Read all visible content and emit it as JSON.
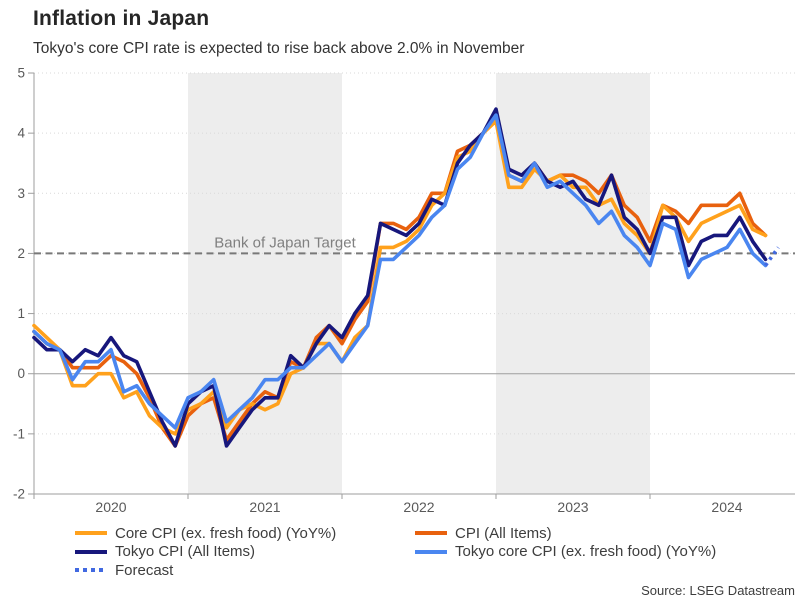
{
  "header": {
    "title": "Inflation in Japan",
    "subtitle": "Tokyo's core CPI rate is expected to rise back above 2.0% in November"
  },
  "source": "Source: LSEG Datastream",
  "chart_data": {
    "type": "line",
    "x_unit": "month",
    "months": [
      "2020-01",
      "2020-02",
      "2020-03",
      "2020-04",
      "2020-05",
      "2020-06",
      "2020-07",
      "2020-08",
      "2020-09",
      "2020-10",
      "2020-11",
      "2020-12",
      "2021-01",
      "2021-02",
      "2021-03",
      "2021-04",
      "2021-05",
      "2021-06",
      "2021-07",
      "2021-08",
      "2021-09",
      "2021-10",
      "2021-11",
      "2021-12",
      "2022-01",
      "2022-02",
      "2022-03",
      "2022-04",
      "2022-05",
      "2022-06",
      "2022-07",
      "2022-08",
      "2022-09",
      "2022-10",
      "2022-11",
      "2022-12",
      "2023-01",
      "2023-02",
      "2023-03",
      "2023-04",
      "2023-05",
      "2023-06",
      "2023-07",
      "2023-08",
      "2023-09",
      "2023-10",
      "2023-11",
      "2023-12",
      "2024-01",
      "2024-02",
      "2024-03",
      "2024-04",
      "2024-05",
      "2024-06",
      "2024-07",
      "2024-08",
      "2024-09",
      "2024-10"
    ],
    "ylim": [
      -2,
      5
    ],
    "yticks": [
      5,
      4,
      3,
      2,
      1,
      0,
      -1,
      -2
    ],
    "year_ticks": [
      2020,
      2021,
      2022,
      2023,
      2024
    ],
    "shaded_years": [
      2021,
      2023
    ],
    "grid": "dotted-horizontal",
    "legend_position": "bottom",
    "target_line": {
      "value": 2.0,
      "label": "Bank of Japan Target",
      "color": "#787878"
    },
    "series": [
      {
        "id": "cpi",
        "name": "CPI (All Items)",
        "color": "#E8610E",
        "values": [
          0.7,
          0.5,
          0.4,
          0.1,
          0.1,
          0.1,
          0.3,
          0.2,
          0.0,
          -0.4,
          -0.9,
          -1.2,
          -0.7,
          -0.5,
          -0.4,
          -1.1,
          -0.8,
          -0.5,
          -0.3,
          -0.4,
          0.2,
          0.1,
          0.6,
          0.8,
          0.5,
          0.9,
          1.2,
          2.5,
          2.5,
          2.4,
          2.6,
          3.0,
          3.0,
          3.7,
          3.8,
          4.0,
          4.3,
          3.3,
          3.2,
          3.5,
          3.2,
          3.3,
          3.3,
          3.2,
          3.0,
          3.3,
          2.8,
          2.6,
          2.2,
          2.8,
          2.7,
          2.5,
          2.8,
          2.8,
          2.8,
          3.0,
          2.5,
          2.3
        ]
      },
      {
        "id": "core",
        "name": "Core CPI (ex. fresh food) (YoY%)",
        "color": "#FFA11C",
        "values": [
          0.8,
          0.6,
          0.4,
          -0.2,
          -0.2,
          0.0,
          0.0,
          -0.4,
          -0.3,
          -0.7,
          -0.9,
          -1.0,
          -0.6,
          -0.5,
          -0.3,
          -0.9,
          -0.6,
          -0.5,
          -0.6,
          -0.5,
          0.0,
          0.1,
          0.5,
          0.5,
          0.2,
          0.6,
          0.8,
          2.1,
          2.1,
          2.2,
          2.4,
          2.8,
          3.0,
          3.6,
          3.7,
          4.0,
          4.2,
          3.1,
          3.1,
          3.4,
          3.2,
          3.3,
          3.1,
          3.1,
          2.8,
          2.9,
          2.5,
          2.3,
          2.0,
          2.8,
          2.6,
          2.2,
          2.5,
          2.6,
          2.7,
          2.8,
          2.4,
          2.3
        ]
      },
      {
        "id": "tokyo",
        "name": "Tokyo CPI (All Items)",
        "color": "#17177C",
        "values": [
          0.6,
          0.4,
          0.4,
          0.2,
          0.4,
          0.3,
          0.6,
          0.3,
          0.2,
          -0.3,
          -0.8,
          -1.2,
          -0.5,
          -0.3,
          -0.2,
          -1.2,
          -0.9,
          -0.6,
          -0.4,
          -0.4,
          0.3,
          0.1,
          0.5,
          0.8,
          0.6,
          1.0,
          1.3,
          2.5,
          2.4,
          2.3,
          2.5,
          2.9,
          2.8,
          3.5,
          3.8,
          4.0,
          4.4,
          3.4,
          3.3,
          3.5,
          3.2,
          3.1,
          3.2,
          2.9,
          2.8,
          3.3,
          2.6,
          2.4,
          2.0,
          2.6,
          2.6,
          1.8,
          2.2,
          2.3,
          2.3,
          2.6,
          2.2,
          1.9
        ]
      },
      {
        "id": "tokyocore",
        "name": "Tokyo core CPI (ex. fresh food) (YoY%)",
        "color": "#4A86F0",
        "values": [
          0.7,
          0.5,
          0.4,
          -0.1,
          0.2,
          0.2,
          0.4,
          -0.3,
          -0.2,
          -0.5,
          -0.7,
          -0.9,
          -0.4,
          -0.3,
          -0.1,
          -0.8,
          -0.6,
          -0.4,
          -0.1,
          -0.1,
          0.1,
          0.1,
          0.3,
          0.5,
          0.2,
          0.5,
          0.8,
          1.9,
          1.9,
          2.1,
          2.3,
          2.6,
          2.8,
          3.4,
          3.6,
          4.0,
          4.3,
          3.3,
          3.2,
          3.5,
          3.1,
          3.2,
          3.0,
          2.8,
          2.5,
          2.7,
          2.3,
          2.1,
          1.8,
          2.5,
          2.4,
          1.6,
          1.9,
          2.0,
          2.1,
          2.4,
          2.0,
          1.8
        ]
      }
    ],
    "forecast": {
      "id": "forecast",
      "name": "Forecast",
      "color": "#4169E1",
      "months": [
        "2024-10",
        "2024-11"
      ],
      "values": [
        1.8,
        2.1
      ]
    }
  },
  "legend": {
    "note": "labels bound from chart_data series names"
  }
}
